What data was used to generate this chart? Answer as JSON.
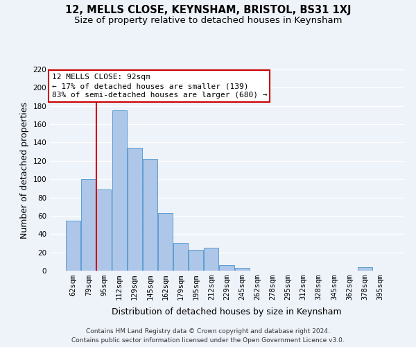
{
  "title": "12, MELLS CLOSE, KEYNSHAM, BRISTOL, BS31 1XJ",
  "subtitle": "Size of property relative to detached houses in Keynsham",
  "xlabel": "Distribution of detached houses by size in Keynsham",
  "ylabel": "Number of detached properties",
  "bar_labels": [
    "62sqm",
    "79sqm",
    "95sqm",
    "112sqm",
    "129sqm",
    "145sqm",
    "162sqm",
    "179sqm",
    "195sqm",
    "212sqm",
    "229sqm",
    "245sqm",
    "262sqm",
    "278sqm",
    "295sqm",
    "312sqm",
    "328sqm",
    "345sqm",
    "362sqm",
    "378sqm",
    "395sqm"
  ],
  "bar_values": [
    55,
    100,
    89,
    175,
    134,
    122,
    63,
    30,
    23,
    25,
    6,
    3,
    0,
    0,
    0,
    0,
    0,
    0,
    0,
    4,
    0
  ],
  "bar_color": "#aec6e8",
  "bar_edge_color": "#5a9fd4",
  "marker_label": "12 MELLS CLOSE: 92sqm",
  "annotation_line1": "← 17% of detached houses are smaller (139)",
  "annotation_line2": "83% of semi-detached houses are larger (680) →",
  "vline_color": "#cc0000",
  "vline_x": 1.5,
  "ylim": [
    0,
    220
  ],
  "yticks": [
    0,
    20,
    40,
    60,
    80,
    100,
    120,
    140,
    160,
    180,
    200,
    220
  ],
  "footer_line1": "Contains HM Land Registry data © Crown copyright and database right 2024.",
  "footer_line2": "Contains public sector information licensed under the Open Government Licence v3.0.",
  "bg_color": "#eef2f9",
  "grid_color": "#ffffff",
  "annotation_box_color": "#ffffff",
  "annotation_box_edge": "#cc0000",
  "title_fontsize": 10.5,
  "subtitle_fontsize": 9.5,
  "axis_label_fontsize": 9,
  "tick_fontsize": 7.5,
  "annotation_fontsize": 8,
  "footer_fontsize": 6.5
}
